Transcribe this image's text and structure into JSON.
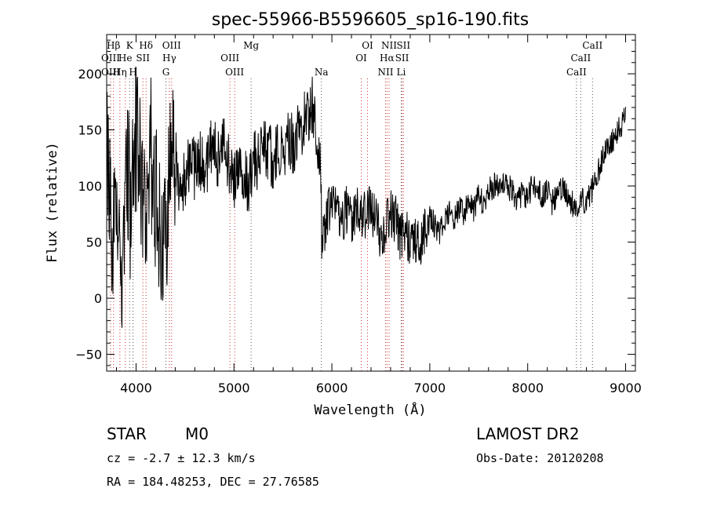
{
  "chart_data": {
    "type": "line",
    "title": "spec-55966-B5596605_sp16-190.fits",
    "xlabel": "Wavelength (Å)",
    "ylabel": "Flux (relative)",
    "xlim": [
      3700,
      9100
    ],
    "ylim": [
      -65,
      235
    ],
    "xticks": [
      4000,
      5000,
      6000,
      7000,
      8000,
      9000
    ],
    "yticks": [
      -50,
      0,
      50,
      100,
      150,
      200
    ],
    "grid": false,
    "colors": {
      "spectrum": "#000000",
      "marker_red": "#cc3333",
      "marker_gray": "#555555"
    },
    "series": [
      {
        "values_x": [
          3700,
          3750,
          3800,
          3850,
          3900,
          3950,
          4000,
          4050,
          4100,
          4150,
          4200,
          4250,
          4300,
          4350,
          4400,
          4450,
          4500,
          4550,
          4600,
          4650,
          4700,
          4750,
          4800,
          4850,
          4900,
          4950,
          5000,
          5050,
          5100,
          5150,
          5200,
          5250,
          5300,
          5350,
          5400,
          5450,
          5500,
          5550,
          5600,
          5650,
          5700,
          5750,
          5800,
          5850,
          5880,
          5900,
          5920,
          5950,
          6000,
          6050,
          6100,
          6150,
          6200,
          6250,
          6300,
          6350,
          6400,
          6450,
          6500,
          6550,
          6600,
          6650,
          6700,
          6750,
          6800,
          6850,
          6900,
          6950,
          7000,
          7050,
          7100,
          7150,
          7200,
          7250,
          7300,
          7350,
          7400,
          7450,
          7500,
          7550,
          7600,
          7650,
          7700,
          7750,
          7800,
          7850,
          7900,
          7950,
          8000,
          8050,
          8100,
          8150,
          8200,
          8250,
          8300,
          8350,
          8400,
          8450,
          8500,
          8550,
          8600,
          8650,
          8700,
          8750,
          8800,
          8850,
          8900,
          8950,
          9000
        ],
        "values_y": [
          120,
          60,
          100,
          -10,
          140,
          70,
          150,
          110,
          90,
          130,
          95,
          70,
          40,
          110,
          125,
          95,
          105,
          120,
          115,
          125,
          110,
          130,
          135,
          120,
          140,
          120,
          105,
          125,
          115,
          100,
          120,
          125,
          140,
          130,
          125,
          135,
          130,
          145,
          135,
          150,
          155,
          165,
          170,
          140,
          125,
          40,
          60,
          75,
          80,
          85,
          70,
          80,
          65,
          85,
          70,
          75,
          80,
          70,
          55,
          65,
          75,
          70,
          55,
          60,
          50,
          55,
          45,
          60,
          75,
          65,
          60,
          70,
          75,
          70,
          80,
          75,
          85,
          80,
          90,
          85,
          95,
          100,
          100,
          105,
          100,
          95,
          85,
          95,
          90,
          100,
          95,
          90,
          95,
          85,
          90,
          100,
          90,
          85,
          80,
          90,
          85,
          95,
          110,
          120,
          135,
          140,
          145,
          155,
          160
        ]
      }
    ],
    "markers": [
      {
        "label": "Hβ",
        "x": 3770,
        "row": 0,
        "style": "red"
      },
      {
        "label": "OIII",
        "x": 3740,
        "row": 1,
        "style": "red"
      },
      {
        "label": "OIII",
        "x": 3740,
        "row": 2,
        "style": "red"
      },
      {
        "label": "K",
        "x": 3934,
        "row": 0,
        "style": "gray"
      },
      {
        "label": "He",
        "x": 3890,
        "row": 1,
        "style": "red"
      },
      {
        "label": "Hη",
        "x": 3835,
        "row": 2,
        "style": "red"
      },
      {
        "label": "H",
        "x": 3969,
        "row": 2,
        "style": "gray"
      },
      {
        "label": "SII",
        "x": 4070,
        "row": 1,
        "style": "red"
      },
      {
        "label": "Hδ",
        "x": 4102,
        "row": 0,
        "style": "red"
      },
      {
        "label": "OIII",
        "x": 4363,
        "row": 0,
        "style": "red"
      },
      {
        "label": "Hγ",
        "x": 4340,
        "row": 1,
        "style": "red"
      },
      {
        "label": "G",
        "x": 4305,
        "row": 2,
        "style": "gray"
      },
      {
        "label": "OIII",
        "x": 4959,
        "row": 1,
        "style": "red"
      },
      {
        "label": "OIII",
        "x": 5007,
        "row": 2,
        "style": "red"
      },
      {
        "label": "Mg",
        "x": 5175,
        "row": 0,
        "style": "gray"
      },
      {
        "label": "Na",
        "x": 5893,
        "row": 2,
        "style": "gray"
      },
      {
        "label": "OI",
        "x": 6364,
        "row": 0,
        "style": "red"
      },
      {
        "label": "OI",
        "x": 6300,
        "row": 1,
        "style": "red"
      },
      {
        "label": "NII",
        "x": 6584,
        "row": 0,
        "style": "red"
      },
      {
        "label": "SII",
        "x": 6731,
        "row": 0,
        "style": "red"
      },
      {
        "label": "Hα",
        "x": 6563,
        "row": 1,
        "style": "red"
      },
      {
        "label": "SII",
        "x": 6717,
        "row": 1,
        "style": "red"
      },
      {
        "label": "NII",
        "x": 6548,
        "row": 2,
        "style": "red"
      },
      {
        "label": "Li",
        "x": 6708,
        "row": 2,
        "style": "gray"
      },
      {
        "label": "CaII",
        "x": 8662,
        "row": 0,
        "style": "gray"
      },
      {
        "label": "CaII",
        "x": 8542,
        "row": 1,
        "style": "gray"
      },
      {
        "label": "CaII",
        "x": 8498,
        "row": 2,
        "style": "gray"
      }
    ]
  },
  "footer": {
    "object_class": "STAR",
    "subclass": "M0",
    "survey": "LAMOST DR2",
    "redshift": "cz = -2.7 ± 12.3 km/s",
    "obs_date": "Obs-Date: 20120208",
    "coords": "RA = 184.48253, DEC =  27.76585"
  }
}
